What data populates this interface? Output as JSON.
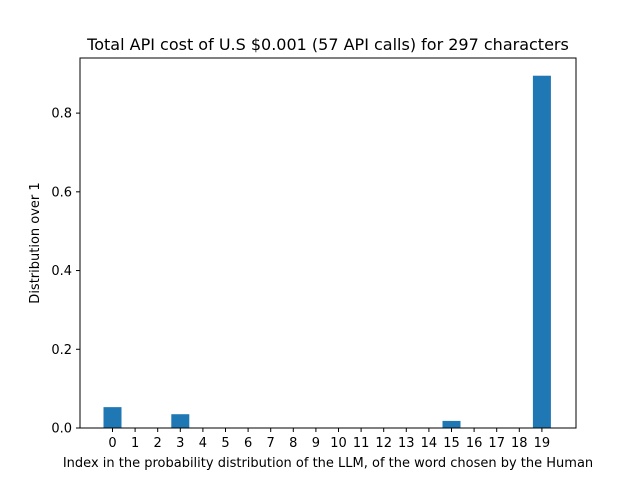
{
  "chart_data": {
    "type": "bar",
    "title": "Total API cost of U.S $0.001 (57 API calls) for 297 characters",
    "xlabel": "Index in the probability distribution of the LLM, of the word chosen by the Human",
    "ylabel": "Distribution over 1",
    "categories": [
      "0",
      "1",
      "2",
      "3",
      "4",
      "5",
      "6",
      "7",
      "8",
      "9",
      "10",
      "11",
      "12",
      "13",
      "14",
      "15",
      "16",
      "17",
      "18",
      "19"
    ],
    "values": [
      0.053,
      0,
      0,
      0.035,
      0,
      0,
      0,
      0,
      0,
      0,
      0,
      0,
      0,
      0,
      0,
      0.018,
      0,
      0,
      0,
      0.895
    ],
    "ylim": [
      0,
      0.94
    ],
    "yticks": [
      0.0,
      0.2,
      0.4,
      0.6,
      0.8
    ],
    "ytick_labels": [
      "0.0",
      "0.2",
      "0.4",
      "0.6",
      "0.8"
    ],
    "grid": false,
    "bar_color": "#1f77b4"
  }
}
